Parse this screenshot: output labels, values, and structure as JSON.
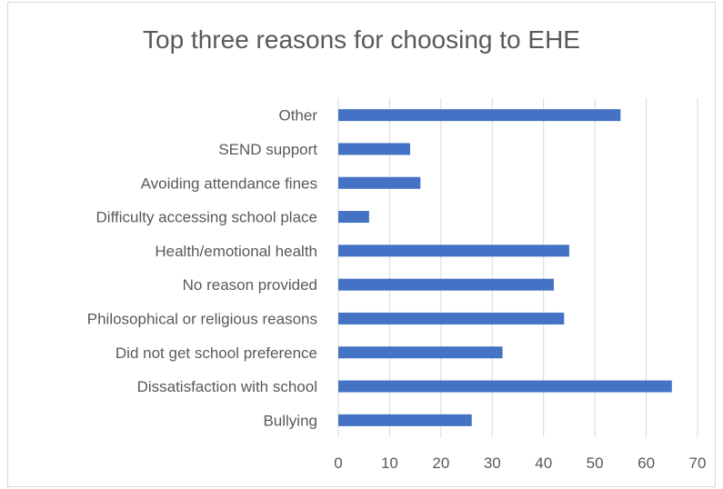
{
  "chart_data": {
    "type": "bar",
    "orientation": "horizontal",
    "title": "Top three reasons for choosing to EHE",
    "categories": [
      "Bullying",
      "Dissatisfaction with school",
      "Did not get school preference",
      "Philosophical or religious reasons",
      "No reason provided",
      "Health/emotional health",
      "Difficulty accessing school place",
      "Avoiding attendance fines",
      "SEND support",
      "Other"
    ],
    "values": [
      26,
      65,
      32,
      44,
      42,
      45,
      6,
      16,
      14,
      55
    ],
    "xlim": [
      0,
      70
    ],
    "xticks": [
      "0",
      "10",
      "20",
      "30",
      "40",
      "50",
      "60",
      "70"
    ],
    "grid": true,
    "legend": "none",
    "bar_color": "#4472c4",
    "grid_color": "#d9d9d9",
    "text_color": "#595959"
  }
}
